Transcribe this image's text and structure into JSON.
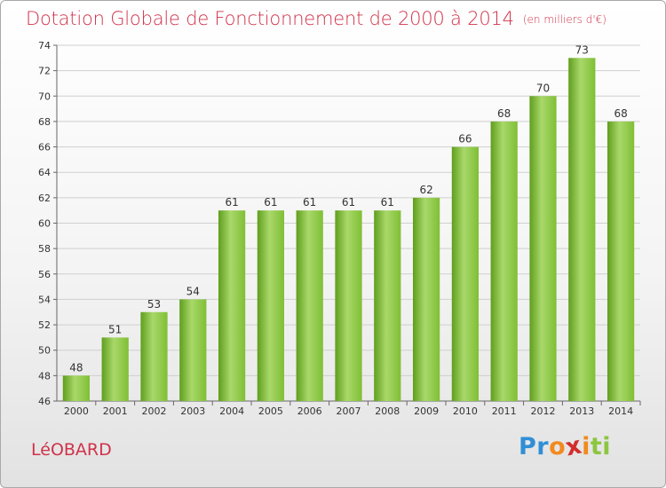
{
  "title": "Dotation Globale de Fonctionnement de 2000 à 2014",
  "subtitle": "(en milliers d'€)",
  "commune": "LéOBARD",
  "brand": {
    "letters": [
      "P",
      "r",
      "o",
      "x",
      "i",
      "t",
      "i"
    ],
    "colors": [
      "#2f8fd6",
      "#2f8fd6",
      "#f28a1e",
      "#d22d2d",
      "#f28a1e",
      "#8cc63f",
      "#8cc63f"
    ]
  },
  "colors": {
    "bar": "#7fbf35",
    "bar_light": "#a9d86a",
    "bar_dark": "#5f9e1d",
    "title": "#d0324a"
  },
  "chart_data": {
    "type": "bar",
    "categories": [
      "2000",
      "2001",
      "2002",
      "2003",
      "2004",
      "2005",
      "2006",
      "2007",
      "2008",
      "2009",
      "2010",
      "2011",
      "2012",
      "2013",
      "2014"
    ],
    "values": [
      48,
      51,
      53,
      54,
      61,
      61,
      61,
      61,
      61,
      62,
      66,
      68,
      70,
      73,
      68
    ],
    "ylim": [
      46,
      74
    ],
    "yticks": [
      46,
      48,
      50,
      52,
      54,
      56,
      58,
      60,
      62,
      64,
      66,
      68,
      70,
      72,
      74
    ],
    "grid": true
  }
}
